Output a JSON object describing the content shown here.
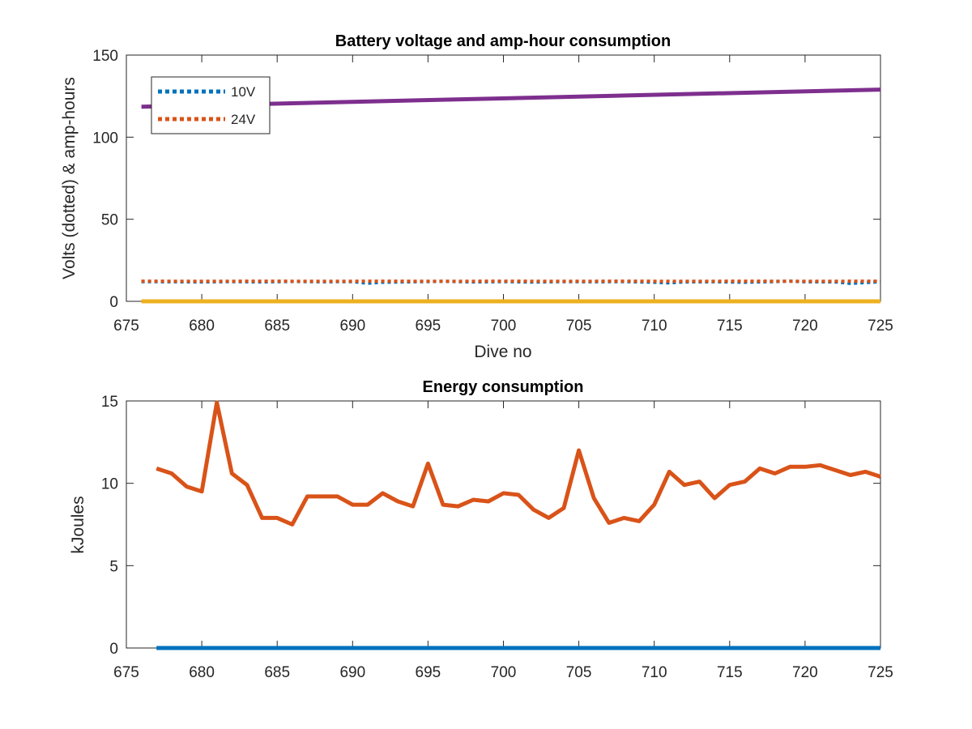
{
  "chart_data": [
    {
      "type": "line",
      "title": "Battery voltage and amp-hour consumption",
      "xlabel": "Dive no",
      "ylabel": "Volts (dotted) & amp-hours",
      "xlim": [
        675,
        725
      ],
      "ylim": [
        0,
        150
      ],
      "xticks": [
        675,
        680,
        685,
        690,
        695,
        700,
        705,
        710,
        715,
        720,
        725
      ],
      "yticks": [
        0,
        50,
        100,
        150
      ],
      "grid": false,
      "legend_position": "top-left",
      "series": [
        {
          "name": "10V",
          "color": "#0072BD",
          "style": "dotted",
          "x": [
            676,
            678,
            680,
            682,
            684,
            686,
            688,
            690,
            691,
            692,
            694,
            696,
            698,
            700,
            702,
            704,
            706,
            708,
            710,
            711,
            712,
            714,
            716,
            718,
            719,
            720,
            722,
            723,
            725
          ],
          "y": [
            12,
            11.9,
            11.8,
            12,
            11.8,
            12.1,
            11.9,
            12,
            11,
            11.6,
            11.9,
            12.2,
            11.8,
            12,
            11.7,
            12,
            11.9,
            12,
            11.6,
            11.2,
            11.8,
            11.9,
            11.6,
            12,
            12.3,
            11.9,
            11.8,
            10.9,
            11.9
          ]
        },
        {
          "name": "24V",
          "color": "#D95319",
          "style": "dotted",
          "x": [
            676,
            680,
            684,
            688,
            692,
            696,
            700,
            704,
            708,
            712,
            716,
            720,
            725
          ],
          "y": [
            12.3,
            12.2,
            12.3,
            12.2,
            12.3,
            12.2,
            12.3,
            12.2,
            12.3,
            12.2,
            12.3,
            12.2,
            12.3
          ]
        },
        {
          "color": "#EDB120",
          "style": "solid",
          "x": [
            676,
            725
          ],
          "y": [
            0,
            0
          ]
        },
        {
          "color": "#7E2F8E",
          "style": "solid",
          "x": [
            676,
            725
          ],
          "y": [
            118.5,
            129
          ]
        }
      ]
    },
    {
      "type": "line",
      "title": "Energy consumption",
      "xlabel": "",
      "ylabel": "kJoules",
      "xlim": [
        675,
        725
      ],
      "ylim": [
        0,
        15
      ],
      "xticks": [
        675,
        680,
        685,
        690,
        695,
        700,
        705,
        710,
        715,
        720,
        725
      ],
      "yticks": [
        0,
        5,
        10,
        15
      ],
      "grid": false,
      "series": [
        {
          "color": "#0072BD",
          "style": "solid",
          "x": [
            677,
            725
          ],
          "y": [
            0,
            0
          ]
        },
        {
          "color": "#D95319",
          "style": "solid",
          "x": [
            677,
            678,
            679,
            680,
            681,
            682,
            683,
            684,
            685,
            686,
            687,
            688,
            689,
            690,
            691,
            692,
            693,
            694,
            695,
            696,
            697,
            698,
            699,
            700,
            701,
            702,
            703,
            704,
            705,
            706,
            707,
            708,
            709,
            710,
            711,
            712,
            713,
            714,
            715,
            716,
            717,
            718,
            719,
            720,
            721,
            722,
            723,
            724,
            725
          ],
          "y": [
            10.9,
            10.6,
            9.8,
            9.5,
            14.9,
            10.6,
            9.9,
            7.9,
            7.9,
            7.5,
            9.2,
            9.2,
            9.2,
            8.7,
            8.7,
            9.4,
            8.9,
            8.6,
            11.2,
            8.7,
            8.6,
            9.0,
            8.9,
            9.4,
            9.3,
            8.4,
            7.9,
            8.5,
            12.0,
            9.1,
            7.6,
            7.9,
            7.7,
            8.7,
            10.7,
            9.9,
            10.1,
            9.1,
            9.9,
            10.1,
            10.9,
            10.6,
            11.0,
            11.0,
            11.1,
            10.8,
            10.5,
            10.7,
            10.4
          ]
        }
      ]
    }
  ]
}
